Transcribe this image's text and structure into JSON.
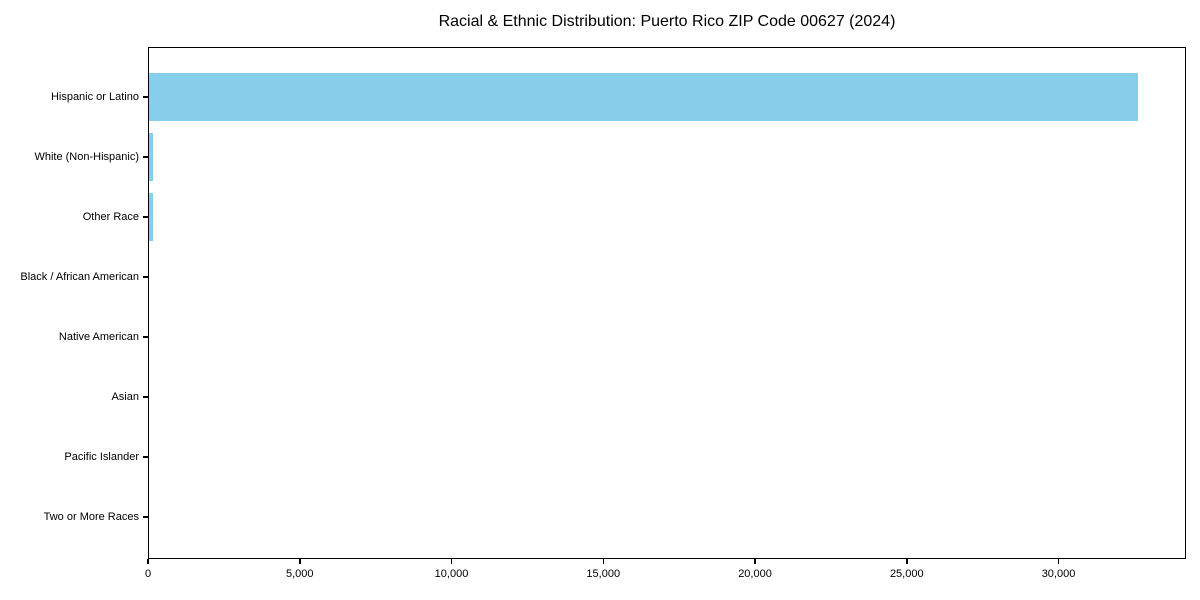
{
  "chart_data": {
    "type": "bar",
    "orientation": "horizontal",
    "title": "Racial & Ethnic Distribution: Puerto Rico ZIP Code 00627 (2024)",
    "categories": [
      "Hispanic or Latino",
      "White (Non-Hispanic)",
      "Other Race",
      "Black / African American",
      "Native American",
      "Asian",
      "Pacific Islander",
      "Two or More Races"
    ],
    "values": [
      32580,
      120,
      130,
      0,
      0,
      0,
      0,
      0
    ],
    "xlabel": "",
    "ylabel": "",
    "xlim": [
      0,
      34200
    ],
    "x_ticks": [
      0,
      5000,
      10000,
      15000,
      20000,
      25000,
      30000
    ],
    "x_tick_labels": [
      "0",
      "5,000",
      "10,000",
      "15,000",
      "20,000",
      "25,000",
      "30,000"
    ],
    "bar_color": "#87CEEB",
    "text_color": "#000000",
    "grid": false,
    "legend": null
  }
}
